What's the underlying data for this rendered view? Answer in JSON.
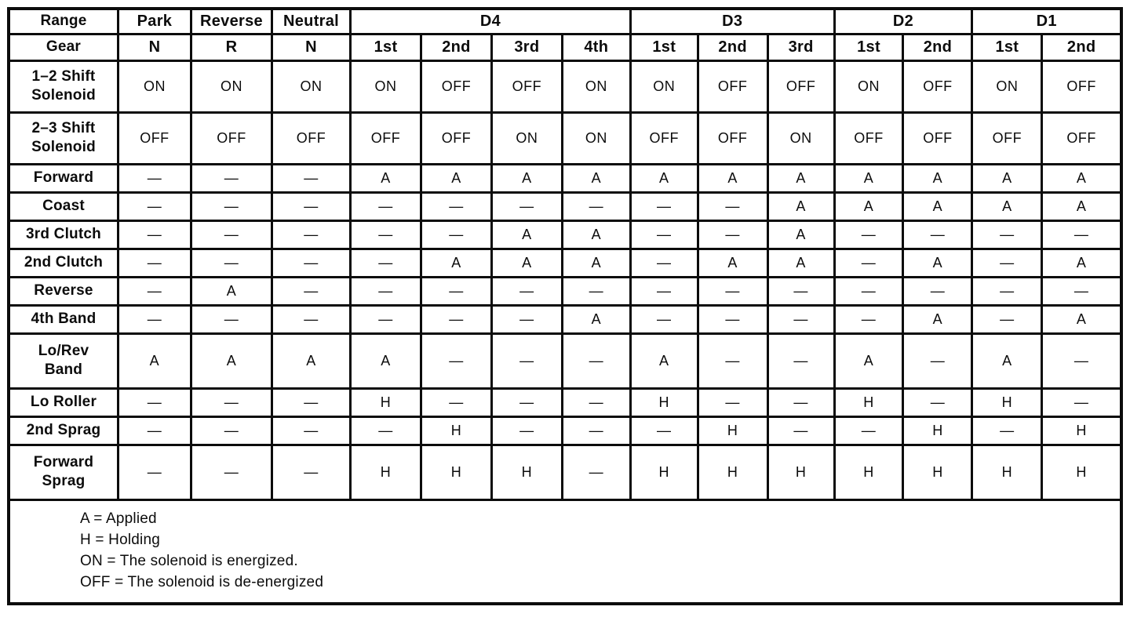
{
  "table": {
    "header": {
      "range_label": "Range",
      "gear_label": "Gear",
      "range_groups": [
        {
          "label": "Park",
          "span": 1
        },
        {
          "label": "Reverse",
          "span": 1
        },
        {
          "label": "Neutral",
          "span": 1
        },
        {
          "label": "D4",
          "span": 4
        },
        {
          "label": "D3",
          "span": 3
        },
        {
          "label": "D2",
          "span": 2
        },
        {
          "label": "D1",
          "span": 2
        }
      ],
      "gears": [
        "N",
        "R",
        "N",
        "1st",
        "2nd",
        "3rd",
        "4th",
        "1st",
        "2nd",
        "3rd",
        "1st",
        "2nd",
        "1st",
        "2nd"
      ]
    },
    "rows": [
      {
        "label": "1–2 Shift\nSolenoid",
        "values": [
          "ON",
          "ON",
          "ON",
          "ON",
          "OFF",
          "OFF",
          "ON",
          "ON",
          "OFF",
          "OFF",
          "ON",
          "OFF",
          "ON",
          "OFF"
        ]
      },
      {
        "label": "2–3 Shift\nSolenoid",
        "values": [
          "OFF",
          "OFF",
          "OFF",
          "OFF",
          "OFF",
          "ON",
          "ON",
          "OFF",
          "OFF",
          "ON",
          "OFF",
          "OFF",
          "OFF",
          "OFF"
        ]
      },
      {
        "label": "Forward",
        "values": [
          "—",
          "—",
          "—",
          "A",
          "A",
          "A",
          "A",
          "A",
          "A",
          "A",
          "A",
          "A",
          "A",
          "A"
        ]
      },
      {
        "label": "Coast",
        "values": [
          "—",
          "—",
          "—",
          "—",
          "—",
          "—",
          "—",
          "—",
          "—",
          "A",
          "A",
          "A",
          "A",
          "A"
        ]
      },
      {
        "label": "3rd Clutch",
        "values": [
          "—",
          "—",
          "—",
          "—",
          "—",
          "A",
          "A",
          "—",
          "—",
          "A",
          "—",
          "—",
          "—",
          "—"
        ]
      },
      {
        "label": "2nd Clutch",
        "values": [
          "—",
          "—",
          "—",
          "—",
          "A",
          "A",
          "A",
          "—",
          "A",
          "A",
          "—",
          "A",
          "—",
          "A"
        ]
      },
      {
        "label": "Reverse",
        "values": [
          "—",
          "A",
          "—",
          "—",
          "—",
          "—",
          "—",
          "—",
          "—",
          "—",
          "—",
          "—",
          "—",
          "—"
        ]
      },
      {
        "label": "4th Band",
        "values": [
          "—",
          "—",
          "—",
          "—",
          "—",
          "—",
          "A",
          "—",
          "—",
          "—",
          "—",
          "A",
          "—",
          "A"
        ]
      },
      {
        "label": "Lo/Rev\nBand",
        "values": [
          "A",
          "A",
          "A",
          "A",
          "—",
          "—",
          "—",
          "A",
          "—",
          "—",
          "A",
          "—",
          "A",
          "—"
        ]
      },
      {
        "label": "Lo Roller",
        "values": [
          "—",
          "—",
          "—",
          "H",
          "—",
          "—",
          "—",
          "H",
          "—",
          "—",
          "H",
          "—",
          "H",
          "—"
        ]
      },
      {
        "label": "2nd Sprag",
        "values": [
          "—",
          "—",
          "—",
          "—",
          "H",
          "—",
          "—",
          "—",
          "H",
          "—",
          "—",
          "H",
          "—",
          "H"
        ]
      },
      {
        "label": "Forward\nSprag",
        "values": [
          "—",
          "—",
          "—",
          "H",
          "H",
          "H",
          "—",
          "H",
          "H",
          "H",
          "H",
          "H",
          "H",
          "H"
        ]
      }
    ],
    "legend": [
      "A = Applied",
      "H = Holding",
      "ON = The solenoid is energized.",
      "OFF = The solenoid is de-energized"
    ]
  }
}
